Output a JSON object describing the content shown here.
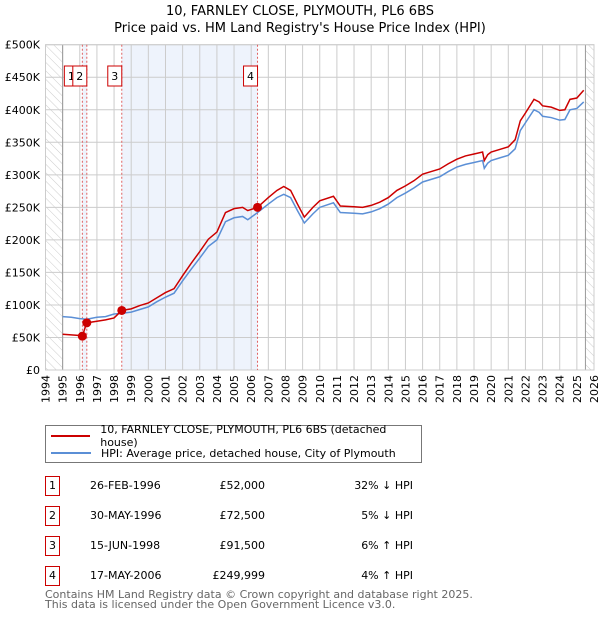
{
  "chart_data": {
    "type": "line",
    "title": "10, FARNLEY CLOSE, PLYMOUTH, PL6 6BS",
    "subtitle": "Price paid vs. HM Land Registry's House Price Index (HPI)",
    "xlim": [
      1994,
      2026
    ],
    "ylim": [
      0,
      500000
    ],
    "x_ticks": [
      "1994",
      "1995",
      "1996",
      "1997",
      "1998",
      "1999",
      "2000",
      "2001",
      "2002",
      "2003",
      "2004",
      "2005",
      "2006",
      "2007",
      "2008",
      "2009",
      "2010",
      "2011",
      "2012",
      "2013",
      "2014",
      "2015",
      "2016",
      "2017",
      "2018",
      "2019",
      "2020",
      "2021",
      "2022",
      "2023",
      "2024",
      "2025",
      "2026"
    ],
    "y_ticks": [
      {
        "v": 0,
        "label": "£0"
      },
      {
        "v": 50000,
        "label": "£50K"
      },
      {
        "v": 100000,
        "label": "£100K"
      },
      {
        "v": 150000,
        "label": "£150K"
      },
      {
        "v": 200000,
        "label": "£200K"
      },
      {
        "v": 250000,
        "label": "£250K"
      },
      {
        "v": 300000,
        "label": "£300K"
      },
      {
        "v": 350000,
        "label": "£350K"
      },
      {
        "v": 400000,
        "label": "£400K"
      },
      {
        "v": 450000,
        "label": "£450K"
      },
      {
        "v": 500000,
        "label": "£500K"
      }
    ],
    "grid": true,
    "data_range": [
      1995,
      2025.5
    ],
    "series": [
      {
        "name": "10, FARNLEY CLOSE, PLYMOUTH, PL6 6BS (detached house)",
        "color": "#cc0000",
        "points": [
          [
            1995,
            55
          ],
          [
            1995.5,
            54
          ],
          [
            1996,
            53
          ],
          [
            1996.15,
            52
          ],
          [
            1996.4,
            72.5
          ],
          [
            1997,
            75
          ],
          [
            1997.5,
            77
          ],
          [
            1998,
            80
          ],
          [
            1998.45,
            91.5
          ],
          [
            1999,
            94
          ],
          [
            1999.5,
            99
          ],
          [
            2000,
            103
          ],
          [
            2000.5,
            111
          ],
          [
            2001,
            119
          ],
          [
            2001.5,
            125
          ],
          [
            2002,
            145
          ],
          [
            2002.5,
            164
          ],
          [
            2003,
            182
          ],
          [
            2003.5,
            201
          ],
          [
            2004,
            212
          ],
          [
            2004.5,
            242
          ],
          [
            2005,
            248
          ],
          [
            2005.5,
            250
          ],
          [
            2005.8,
            245
          ],
          [
            2006.37,
            250
          ],
          [
            2007,
            265
          ],
          [
            2007.5,
            276
          ],
          [
            2007.9,
            282
          ],
          [
            2008.3,
            276
          ],
          [
            2008.7,
            255
          ],
          [
            2009.1,
            235
          ],
          [
            2009.6,
            250
          ],
          [
            2010,
            260
          ],
          [
            2010.8,
            267
          ],
          [
            2011.2,
            252
          ],
          [
            2012,
            251
          ],
          [
            2012.5,
            250
          ],
          [
            2013,
            253
          ],
          [
            2013.5,
            258
          ],
          [
            2014,
            265
          ],
          [
            2014.5,
            276
          ],
          [
            2015,
            283
          ],
          [
            2015.5,
            291
          ],
          [
            2016,
            301
          ],
          [
            2016.5,
            305
          ],
          [
            2017,
            309
          ],
          [
            2017.5,
            317
          ],
          [
            2018,
            324
          ],
          [
            2018.5,
            329
          ],
          [
            2019,
            332
          ],
          [
            2019.5,
            335
          ],
          [
            2019.6,
            322
          ],
          [
            2019.8,
            331
          ],
          [
            2020,
            335
          ],
          [
            2020.5,
            339
          ],
          [
            2021,
            343
          ],
          [
            2021.4,
            354
          ],
          [
            2021.7,
            383
          ],
          [
            2022,
            395
          ],
          [
            2022.5,
            416
          ],
          [
            2022.8,
            412
          ],
          [
            2023,
            406
          ],
          [
            2023.5,
            404
          ],
          [
            2024,
            399
          ],
          [
            2024.3,
            400
          ],
          [
            2024.6,
            416
          ],
          [
            2025,
            418
          ],
          [
            2025.4,
            430
          ]
        ]
      },
      {
        "name": "HPI: Average price, detached house, City of Plymouth",
        "color": "#5b8fd6",
        "points": [
          [
            1995,
            82
          ],
          [
            1995.5,
            81
          ],
          [
            1996,
            79
          ],
          [
            1996.4,
            78
          ],
          [
            1997,
            81
          ],
          [
            1997.5,
            82
          ],
          [
            1998,
            86
          ],
          [
            1998.45,
            87
          ],
          [
            1999,
            89
          ],
          [
            1999.5,
            93
          ],
          [
            2000,
            97
          ],
          [
            2000.5,
            105
          ],
          [
            2001,
            112
          ],
          [
            2001.5,
            118
          ],
          [
            2002,
            137
          ],
          [
            2002.5,
            155
          ],
          [
            2003,
            172
          ],
          [
            2003.5,
            190
          ],
          [
            2004,
            200
          ],
          [
            2004.5,
            228
          ],
          [
            2005,
            234
          ],
          [
            2005.5,
            236
          ],
          [
            2005.8,
            231
          ],
          [
            2006.37,
            242
          ],
          [
            2007,
            255
          ],
          [
            2007.5,
            265
          ],
          [
            2007.9,
            270
          ],
          [
            2008.3,
            265
          ],
          [
            2008.7,
            245
          ],
          [
            2009.1,
            226
          ],
          [
            2009.6,
            240
          ],
          [
            2010,
            250
          ],
          [
            2010.8,
            257
          ],
          [
            2011.2,
            242
          ],
          [
            2012,
            241
          ],
          [
            2012.5,
            240
          ],
          [
            2013,
            243
          ],
          [
            2013.5,
            248
          ],
          [
            2014,
            255
          ],
          [
            2014.5,
            265
          ],
          [
            2015,
            272
          ],
          [
            2015.5,
            280
          ],
          [
            2016,
            289
          ],
          [
            2016.5,
            293
          ],
          [
            2017,
            297
          ],
          [
            2017.5,
            305
          ],
          [
            2018,
            312
          ],
          [
            2018.5,
            316
          ],
          [
            2019,
            319
          ],
          [
            2019.5,
            322
          ],
          [
            2019.6,
            310
          ],
          [
            2019.8,
            318
          ],
          [
            2020,
            322
          ],
          [
            2020.5,
            326
          ],
          [
            2021,
            330
          ],
          [
            2021.4,
            340
          ],
          [
            2021.7,
            368
          ],
          [
            2022,
            380
          ],
          [
            2022.5,
            400
          ],
          [
            2022.8,
            396
          ],
          [
            2023,
            390
          ],
          [
            2023.5,
            388
          ],
          [
            2024,
            384
          ],
          [
            2024.3,
            385
          ],
          [
            2024.6,
            400
          ],
          [
            2025,
            402
          ],
          [
            2025.4,
            412
          ]
        ]
      }
    ],
    "value_unit": "thousands GBP",
    "sales": [
      {
        "id": "1",
        "x": 1996.15,
        "value": 52000,
        "date": "26-FEB-1996",
        "price": "£52,000",
        "hpi": "32% ↓ HPI"
      },
      {
        "id": "2",
        "x": 1996.41,
        "value": 72500,
        "date": "30-MAY-1996",
        "price": "£72,500",
        "hpi": "5% ↓ HPI"
      },
      {
        "id": "3",
        "x": 1998.45,
        "value": 91500,
        "date": "15-JUN-1998",
        "price": "£91,500",
        "hpi": "6% ↑ HPI"
      },
      {
        "id": "4",
        "x": 2006.37,
        "value": 249999,
        "date": "17-MAY-2006",
        "price": "£249,999",
        "hpi": "4% ↑ HPI"
      }
    ]
  },
  "footer": {
    "line1": "Contains HM Land Registry data © Crown copyright and database right 2025.",
    "line2": "This data is licensed under the Open Government Licence v3.0."
  }
}
